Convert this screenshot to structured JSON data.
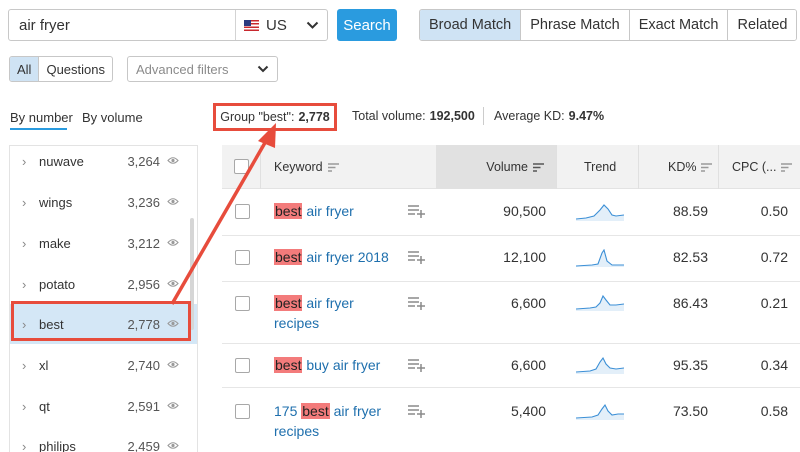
{
  "search": {
    "query": "air fryer",
    "database": "US",
    "button": "Search"
  },
  "match_tabs": [
    {
      "label": "Broad Match",
      "active": true
    },
    {
      "label": "Phrase Match",
      "active": false
    },
    {
      "label": "Exact Match",
      "active": false
    },
    {
      "label": "Related",
      "active": false
    }
  ],
  "filters": {
    "all": "All",
    "questions": "Questions",
    "advanced": "Advanced filters"
  },
  "sort_tabs": {
    "by_number": "By number",
    "by_volume": "By volume"
  },
  "summary": {
    "group_label": "Group \"best\":",
    "group_count": "2,778",
    "total_volume_label": "Total volume:",
    "total_volume": "192,500",
    "avg_kd_label": "Average KD:",
    "avg_kd": "9.47%"
  },
  "groups": [
    {
      "word": "nuwave",
      "count": "3,264"
    },
    {
      "word": "wings",
      "count": "3,236"
    },
    {
      "word": "make",
      "count": "3,212"
    },
    {
      "word": "potato",
      "count": "2,956"
    },
    {
      "word": "best",
      "count": "2,778",
      "selected": true
    },
    {
      "word": "xl",
      "count": "2,740"
    },
    {
      "word": "qt",
      "count": "2,591"
    },
    {
      "word": "philips",
      "count": "2,459"
    }
  ],
  "table": {
    "columns": {
      "keyword": "Keyword",
      "volume": "Volume",
      "trend": "Trend",
      "kd": "KD%",
      "cpc": "CPC (..."
    },
    "rows": [
      {
        "prefix": "",
        "highlight": "best",
        "line1": " air fryer",
        "line2": "",
        "volume": "90,500",
        "kd": "88.59",
        "cpc": "0.50"
      },
      {
        "prefix": "",
        "highlight": "best",
        "line1": " air fryer 2018",
        "line2": "",
        "volume": "12,100",
        "kd": "82.53",
        "cpc": "0.72"
      },
      {
        "prefix": "",
        "highlight": "best",
        "line1": " air fryer",
        "line2": "recipes",
        "volume": "6,600",
        "kd": "86.43",
        "cpc": "0.21"
      },
      {
        "prefix": "",
        "highlight": "best",
        "line1": " buy air fryer",
        "line2": "",
        "volume": "6,600",
        "kd": "95.35",
        "cpc": "0.34"
      },
      {
        "prefix": "175 ",
        "highlight": "best",
        "line1": " air fryer",
        "line2": "recipes",
        "volume": "5,400",
        "kd": "73.50",
        "cpc": "0.58"
      }
    ]
  },
  "colors": {
    "accent": "#2a9bdf",
    "annotation": "#e74c3c",
    "highlight": "#f37b7b",
    "active_tab": "#cfe3f4"
  },
  "icons": [
    "us-flag-icon",
    "chevron-down-icon",
    "chevron-right-icon",
    "eye-icon",
    "sort-icon",
    "add-to-list-icon",
    "trend-sparkline-icon"
  ]
}
